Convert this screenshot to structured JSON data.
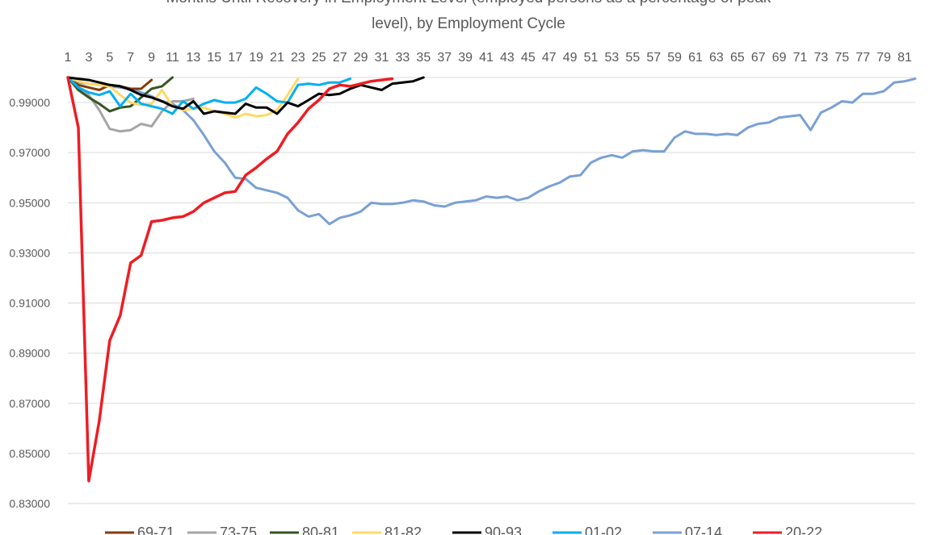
{
  "chart_data": {
    "type": "line",
    "title_lines": [
      "Months Until Recovery in Employment Level (employed persons as a percentage of peak",
      "level), by Employment Cycle"
    ],
    "x_ticks": [
      1,
      3,
      5,
      7,
      9,
      11,
      13,
      15,
      17,
      19,
      21,
      23,
      25,
      27,
      29,
      31,
      33,
      35,
      37,
      39,
      41,
      43,
      45,
      47,
      49,
      51,
      53,
      55,
      57,
      59,
      61,
      63,
      65,
      67,
      69,
      71,
      73,
      75,
      77,
      79,
      81
    ],
    "xlim": [
      1,
      82
    ],
    "ylim": [
      0.83,
      1.0
    ],
    "y_ticks": [
      "0.99000",
      "0.97000",
      "0.95000",
      "0.93000",
      "0.91000",
      "0.89000",
      "0.87000",
      "0.85000",
      "0.83000"
    ],
    "x_axis_position": "top",
    "grid": "horizontal",
    "legend_position": "bottom",
    "series": [
      {
        "name": "69-71",
        "color": "#843c0c",
        "values": [
          1.0,
          0.997,
          0.996,
          0.995,
          0.997,
          0.9965,
          0.9955,
          0.9955,
          0.999
        ]
      },
      {
        "name": "73-75",
        "color": "#a5a5a5",
        "values": [
          1.0,
          0.996,
          0.993,
          0.987,
          0.9795,
          0.9785,
          0.979,
          0.9815,
          0.9805,
          0.9865,
          0.9905,
          0.9905,
          0.9915
        ]
      },
      {
        "name": "80-81",
        "color": "#375623",
        "values": [
          1.0,
          0.995,
          0.992,
          0.9895,
          0.9865,
          0.988,
          0.9885,
          0.992,
          0.9955,
          0.9965,
          1.0
        ]
      },
      {
        "name": "81-82",
        "color": "#ffd966",
        "values": [
          1.0,
          0.9985,
          0.9975,
          0.997,
          0.9965,
          0.993,
          0.99,
          0.989,
          0.9895,
          0.995,
          0.9885,
          0.987,
          0.9875,
          0.988,
          0.9865,
          0.9855,
          0.984,
          0.9855,
          0.9845,
          0.985,
          0.987,
          0.993,
          0.9995
        ]
      },
      {
        "name": "90-93",
        "color": "#000000",
        "values": [
          1.0,
          0.9995,
          0.999,
          0.998,
          0.997,
          0.9965,
          0.995,
          0.993,
          0.992,
          0.9905,
          0.9885,
          0.9875,
          0.9905,
          0.9855,
          0.9865,
          0.986,
          0.9855,
          0.9895,
          0.988,
          0.988,
          0.9855,
          0.99,
          0.9885,
          0.991,
          0.9935,
          0.993,
          0.9935,
          0.9955,
          0.997,
          0.996,
          0.995,
          0.9975,
          0.998,
          0.9985,
          1.0
        ]
      },
      {
        "name": "01-02",
        "color": "#00b0f0",
        "values": [
          1.0,
          0.996,
          0.994,
          0.993,
          0.9945,
          0.9885,
          0.9935,
          0.9895,
          0.9885,
          0.9875,
          0.9855,
          0.9905,
          0.9875,
          0.9895,
          0.991,
          0.99,
          0.99,
          0.9915,
          0.996,
          0.9935,
          0.9905,
          0.99,
          0.997,
          0.9975,
          0.997,
          0.998,
          0.998,
          0.9995
        ]
      },
      {
        "name": "07-14",
        "color": "#7aa0d4",
        "values": [
          1.0,
          0.998,
          0.9975,
          0.997,
          0.9965,
          0.996,
          0.9955,
          0.994,
          0.9925,
          0.9905,
          0.9895,
          0.987,
          0.983,
          0.977,
          0.9705,
          0.966,
          0.96,
          0.9595,
          0.956,
          0.955,
          0.954,
          0.952,
          0.947,
          0.9445,
          0.9455,
          0.9415,
          0.944,
          0.945,
          0.9465,
          0.95,
          0.9495,
          0.9495,
          0.95,
          0.951,
          0.9505,
          0.949,
          0.9485,
          0.95,
          0.9505,
          0.951,
          0.9525,
          0.952,
          0.9525,
          0.951,
          0.952,
          0.9545,
          0.9565,
          0.958,
          0.9605,
          0.961,
          0.966,
          0.968,
          0.969,
          0.968,
          0.9705,
          0.971,
          0.9705,
          0.9705,
          0.976,
          0.9785,
          0.9775,
          0.9775,
          0.977,
          0.9775,
          0.977,
          0.98,
          0.9815,
          0.982,
          0.984,
          0.9845,
          0.985,
          0.979,
          0.986,
          0.988,
          0.9905,
          0.99,
          0.9935,
          0.9935,
          0.9945,
          0.998,
          0.9985,
          0.9995
        ]
      },
      {
        "name": "20-22",
        "color": "#ee1d24",
        "values": [
          1.0,
          0.98,
          0.839,
          0.863,
          0.895,
          0.905,
          0.926,
          0.929,
          0.9425,
          0.943,
          0.944,
          0.9445,
          0.9465,
          0.95,
          0.952,
          0.954,
          0.9545,
          0.961,
          0.964,
          0.9675,
          0.9705,
          0.9775,
          0.982,
          0.9875,
          0.991,
          0.9955,
          0.997,
          0.9965,
          0.9975,
          0.9985,
          0.999,
          0.9995
        ]
      }
    ]
  }
}
